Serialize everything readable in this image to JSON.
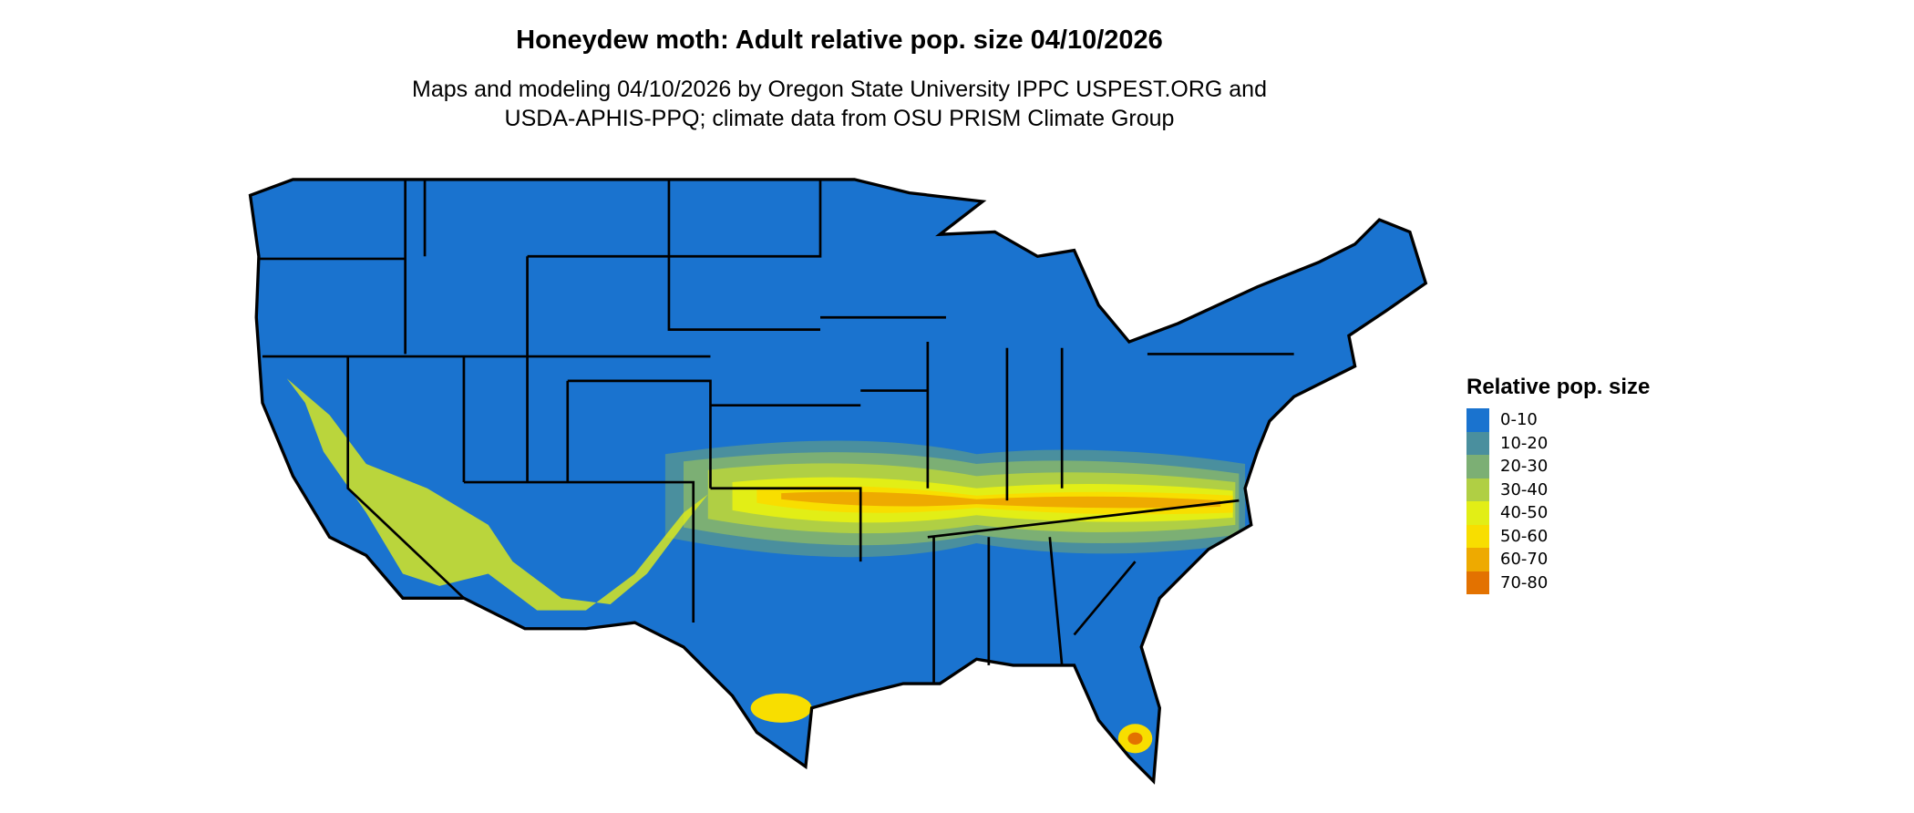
{
  "title": "Honeydew moth: Adult relative pop. size 04/10/2026",
  "subtitle_lines": [
    "Maps and modeling 04/10/2026 by Oregon State University IPPC USPEST.ORG and",
    "USDA-APHIS-PPQ; climate data from OSU PRISM Climate Group"
  ],
  "legend": {
    "title": "Relative pop. size",
    "items": [
      {
        "label": "0-10",
        "color": "#1a73cf"
      },
      {
        "label": "10-20",
        "color": "#4a8f9e"
      },
      {
        "label": "20-30",
        "color": "#7caf74"
      },
      {
        "label": "30-40",
        "color": "#b0cf44"
      },
      {
        "label": "40-50",
        "color": "#e2ee16"
      },
      {
        "label": "50-60",
        "color": "#f8de00"
      },
      {
        "label": "60-70",
        "color": "#eeaa00"
      },
      {
        "label": "70-80",
        "color": "#e37200"
      }
    ]
  },
  "map": {
    "region": "Contiguous United States",
    "border_color": "#000000"
  }
}
